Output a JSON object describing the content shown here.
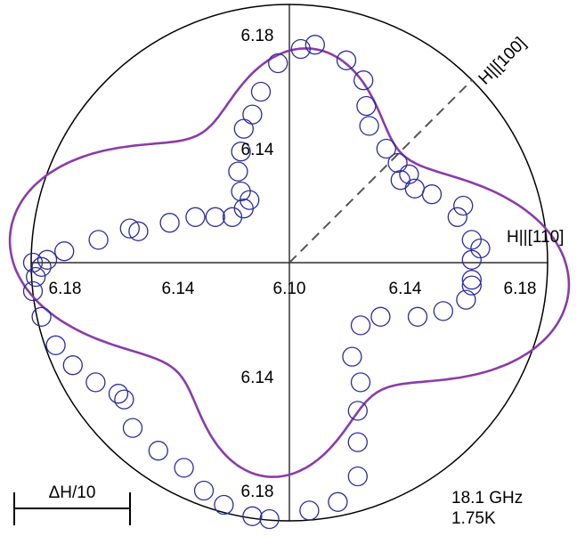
{
  "chart_data": {
    "type": "scatter",
    "projection": "polar",
    "center_value": "6.10",
    "radial_ticks": [
      "6.14",
      "6.18"
    ],
    "radial_range": [
      6.1,
      6.18
    ],
    "axis_labels": {
      "diag": "H||[100]",
      "horiz": "H||[110]"
    },
    "scale_bar_label": "ΔH/10",
    "annotation_lines": [
      "18.1 GHz",
      "1.75K"
    ],
    "tick_labels": {
      "left_outer": "6.18",
      "left_inner": "6.14",
      "center": "6.10",
      "right_inner": "6.14",
      "right_outer": "6.18",
      "top_inner": "6.14",
      "top_outer": "6.18",
      "bottom_inner": "6.14",
      "bottom_outer": "6.18"
    },
    "colors": {
      "markers": "#2b2b9a",
      "fit_curve": "#8a3ca8",
      "axes": "#000000",
      "diag_line": "#555555"
    },
    "x_label": "",
    "y_label": "",
    "series": [
      {
        "kind": "measured",
        "marker": "open-circle",
        "points": [
          {
            "x": 6.104,
            "y": 6.175
          },
          {
            "x": 6.109,
            "y": 6.1765
          },
          {
            "x": 6.096,
            "y": 6.17
          },
          {
            "x": 6.09,
            "y": 6.16
          },
          {
            "x": 6.087,
            "y": 6.152
          },
          {
            "x": 6.084,
            "y": 6.147
          },
          {
            "x": 6.083,
            "y": 6.139
          },
          {
            "x": 6.082,
            "y": 6.132
          },
          {
            "x": 6.083,
            "y": 6.125
          },
          {
            "x": 6.086,
            "y": 6.122
          },
          {
            "x": 6.084,
            "y": 6.119
          },
          {
            "x": 6.08,
            "y": 6.116
          },
          {
            "x": 6.074,
            "y": 6.116
          },
          {
            "x": 6.067,
            "y": 6.116
          },
          {
            "x": 6.058,
            "y": 6.114
          },
          {
            "x": 6.047,
            "y": 6.111
          },
          {
            "x": 6.044,
            "y": 6.112
          },
          {
            "x": 6.033,
            "y": 6.108
          },
          {
            "x": 6.021,
            "y": 6.104
          },
          {
            "x": 6.015,
            "y": 6.101
          },
          {
            "x": 6.013,
            "y": 6.0985
          },
          {
            "x": 6.01,
            "y": 6.1
          },
          {
            "x": 6.011,
            "y": 6.095
          },
          {
            "x": 6.01,
            "y": 6.09
          },
          {
            "x": 6.013,
            "y": 6.081
          },
          {
            "x": 6.018,
            "y": 6.071
          },
          {
            "x": 6.024,
            "y": 6.064
          },
          {
            "x": 6.032,
            "y": 6.058
          },
          {
            "x": 6.04,
            "y": 6.054
          },
          {
            "x": 6.042,
            "y": 6.052
          },
          {
            "x": 6.045,
            "y": 6.042
          },
          {
            "x": 6.054,
            "y": 6.034
          },
          {
            "x": 6.063,
            "y": 6.028
          },
          {
            "x": 6.07,
            "y": 6.02
          },
          {
            "x": 6.077,
            "y": 6.015
          },
          {
            "x": 6.087,
            "y": 6.011
          },
          {
            "x": 6.093,
            "y": 6.01
          },
          {
            "x": 6.107,
            "y": 6.013
          },
          {
            "x": 6.117,
            "y": 6.016
          },
          {
            "x": 6.124,
            "y": 6.025
          },
          {
            "x": 6.124,
            "y": 6.037
          },
          {
            "x": 6.124,
            "y": 6.048
          },
          {
            "x": 6.125,
            "y": 6.058
          },
          {
            "x": 6.122,
            "y": 6.067
          },
          {
            "x": 6.125,
            "y": 6.078
          },
          {
            "x": 6.132,
            "y": 6.081
          },
          {
            "x": 6.145,
            "y": 6.081
          },
          {
            "x": 6.154,
            "y": 6.083
          },
          {
            "x": 6.162,
            "y": 6.087
          },
          {
            "x": 6.164,
            "y": 6.092
          },
          {
            "x": 6.164,
            "y": 6.094
          },
          {
            "x": 6.164,
            "y": 6.101
          },
          {
            "x": 6.167,
            "y": 6.105
          },
          {
            "x": 6.164,
            "y": 6.108
          },
          {
            "x": 6.159,
            "y": 6.116
          },
          {
            "x": 6.161,
            "y": 6.12
          },
          {
            "x": 6.15,
            "y": 6.124
          },
          {
            "x": 6.144,
            "y": 6.126
          },
          {
            "x": 6.139,
            "y": 6.129
          },
          {
            "x": 6.142,
            "y": 6.131
          },
          {
            "x": 6.138,
            "y": 6.135
          },
          {
            "x": 6.134,
            "y": 6.14
          },
          {
            "x": 6.128,
            "y": 6.148
          },
          {
            "x": 6.127,
            "y": 6.155
          },
          {
            "x": 6.126,
            "y": 6.164
          },
          {
            "x": 6.12,
            "y": 6.171
          }
        ]
      },
      {
        "kind": "fit",
        "curve_params": {
          "base": 6.1,
          "a0": 0.0715,
          "a2": 0.0115,
          "a4": 0.0155,
          "rotate_deg": -6
        }
      }
    ]
  }
}
